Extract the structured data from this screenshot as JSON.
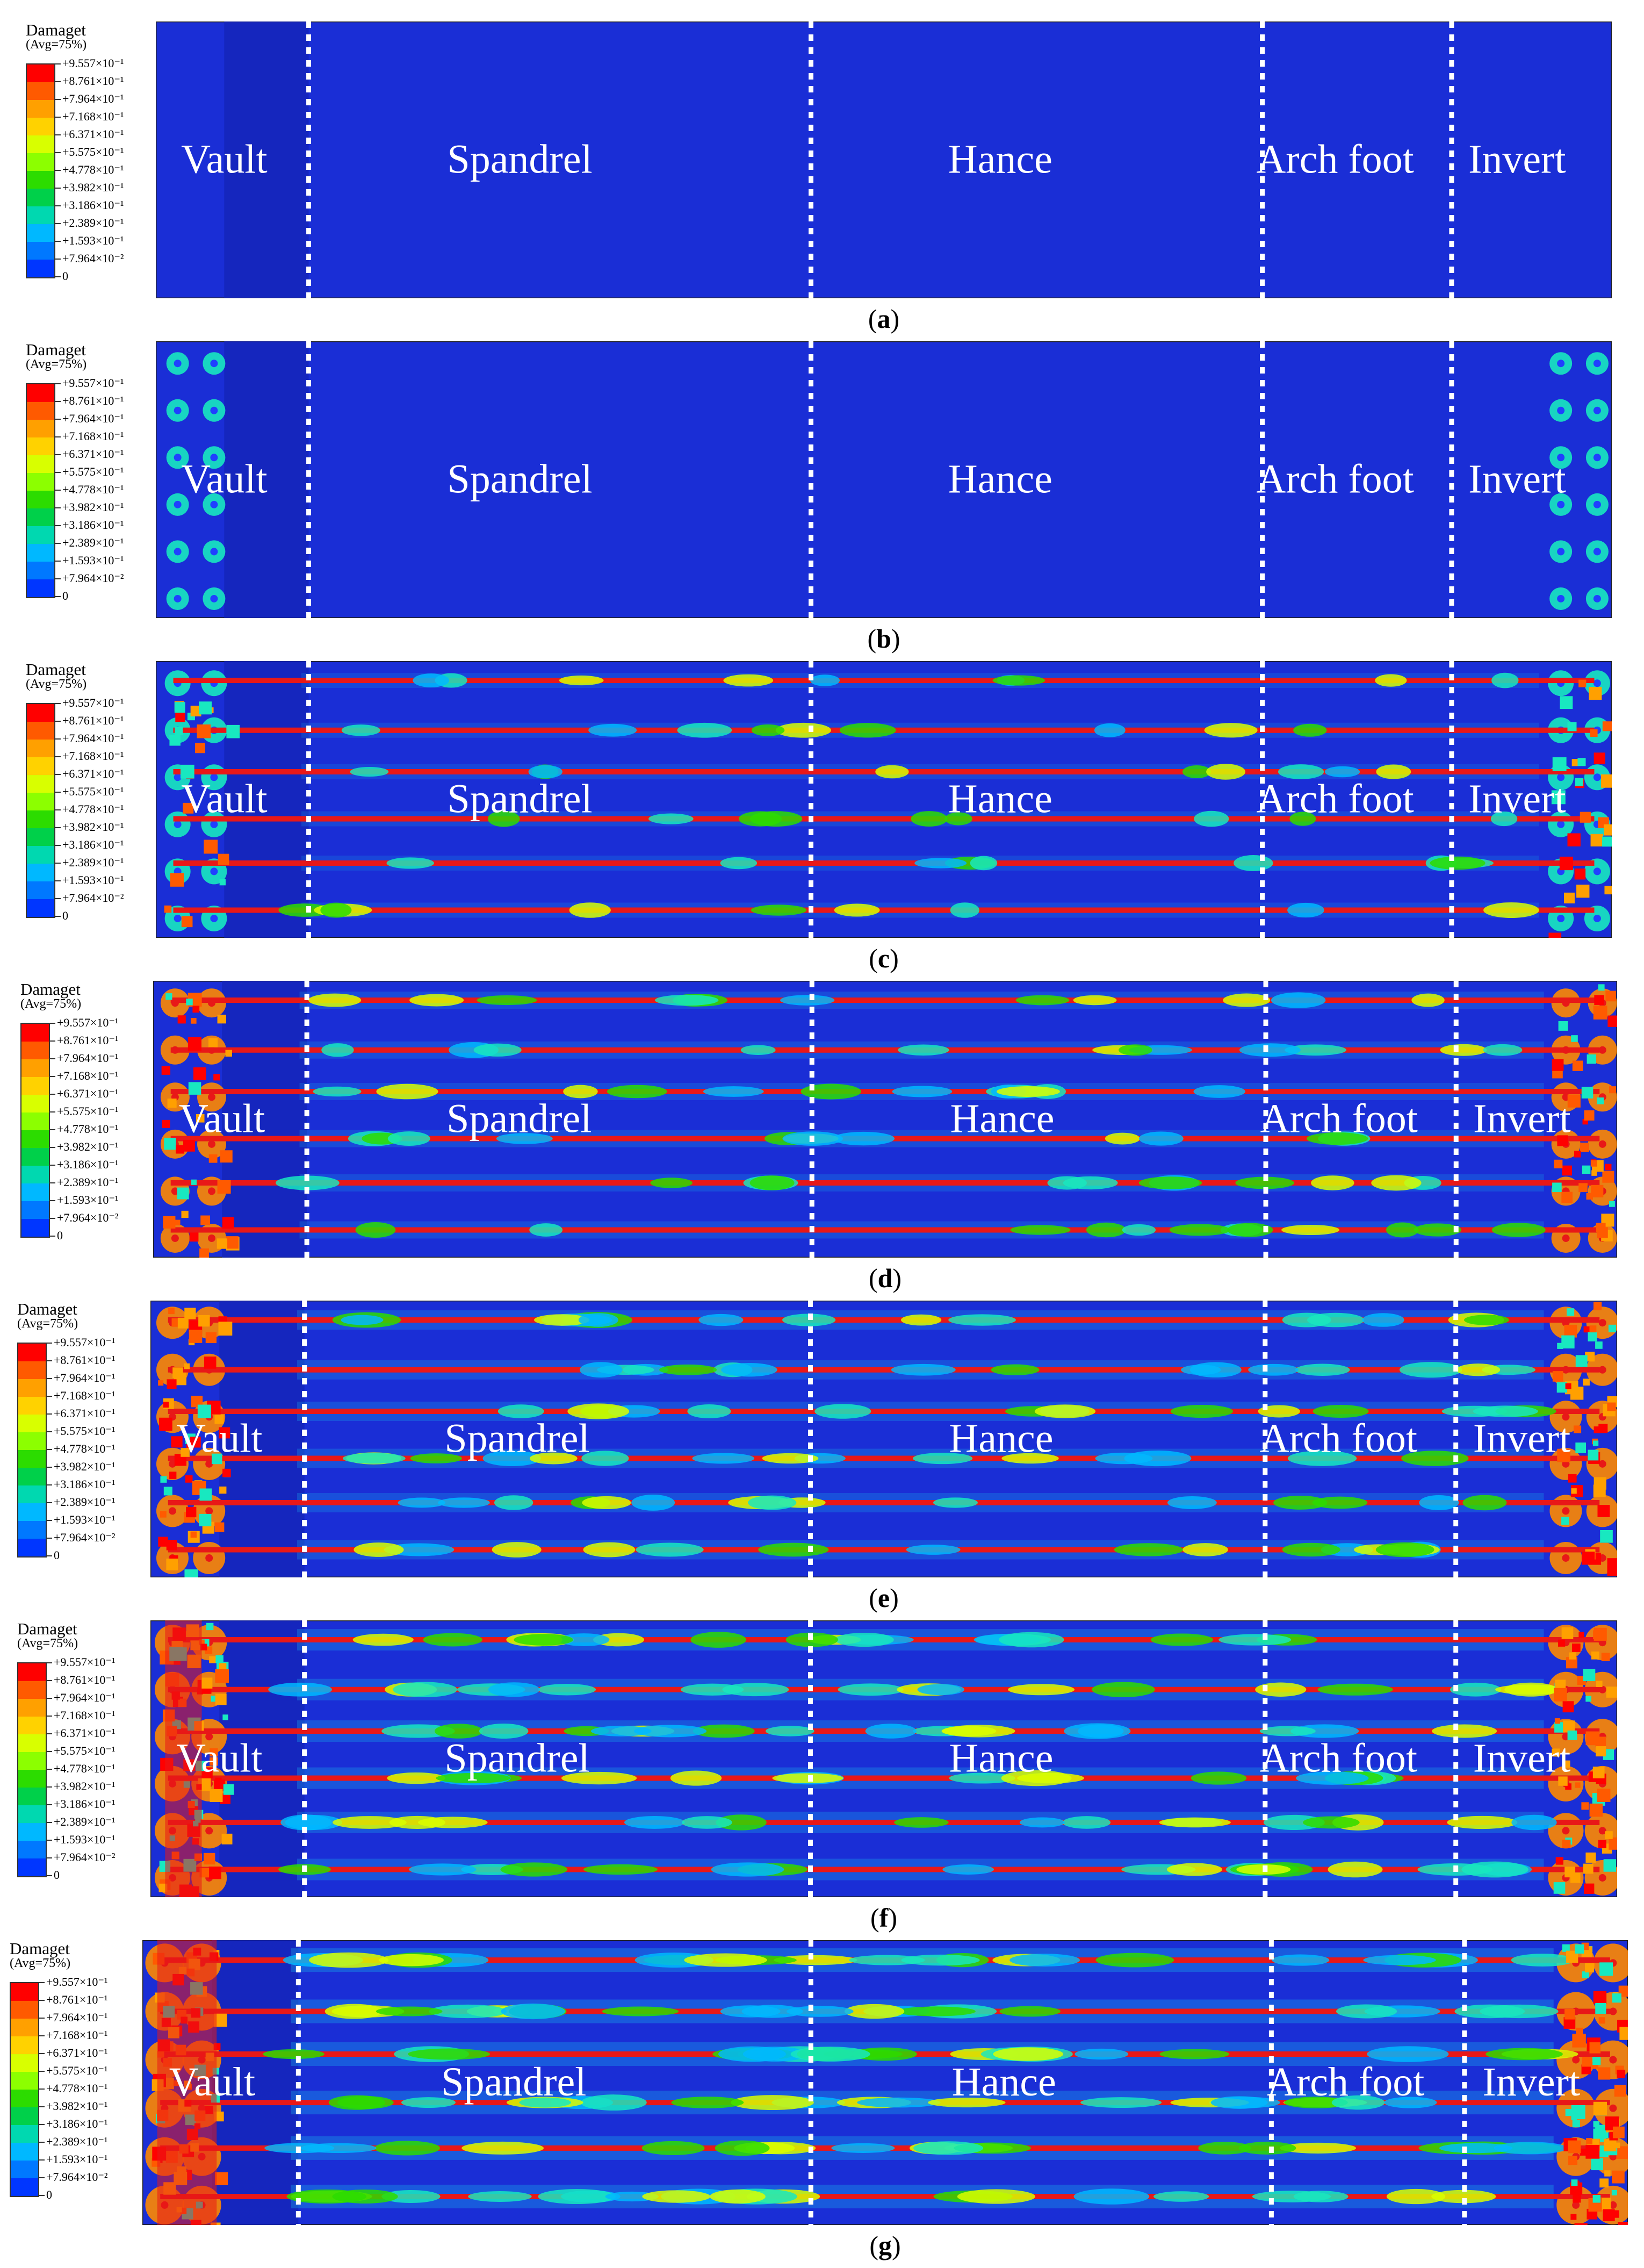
{
  "legend": {
    "title": "Damaget",
    "avg": "(Avg=75%)",
    "labels": [
      "+9.557×10⁻¹",
      "+8.761×10⁻¹",
      "+7.964×10⁻¹",
      "+7.168×10⁻¹",
      "+6.371×10⁻¹",
      "+5.575×10⁻¹",
      "+4.778×10⁻¹",
      "+3.982×10⁻¹",
      "+3.186×10⁻¹",
      "+2.389×10⁻¹",
      "+1.593×10⁻¹",
      "+7.964×10⁻²",
      "0"
    ],
    "colors": [
      "#ff0000",
      "#ff5a00",
      "#ffa000",
      "#ffd200",
      "#d8ff00",
      "#8cff00",
      "#2cdc00",
      "#00d04a",
      "#00d8b0",
      "#00b8ff",
      "#0078ff",
      "#0036ff",
      "#0000e8"
    ]
  },
  "region_labels": [
    "Vault",
    "Spandrel",
    "Hance",
    "Arch foot",
    "Invert"
  ],
  "panels": [
    {
      "caption_open": "(",
      "caption_letter": "a",
      "caption_close": ")",
      "damage_level": 0
    },
    {
      "caption_open": "(",
      "caption_letter": "b",
      "caption_close": ")",
      "damage_level": 1
    },
    {
      "caption_open": "(",
      "caption_letter": "c",
      "caption_close": ")",
      "damage_level": 2
    },
    {
      "caption_open": "(",
      "caption_letter": "d",
      "caption_close": ")",
      "damage_level": 3
    },
    {
      "caption_open": "(",
      "caption_letter": "e",
      "caption_close": ")",
      "damage_level": 4
    },
    {
      "caption_open": "(",
      "caption_letter": "f",
      "caption_close": ")",
      "damage_level": 5
    },
    {
      "caption_open": "(",
      "caption_letter": "g",
      "caption_close": ")",
      "damage_level": 6
    }
  ],
  "colors": {
    "background_blue": "#1a2ed6",
    "crack_red": "#e81818",
    "divider": "#ffffff"
  }
}
